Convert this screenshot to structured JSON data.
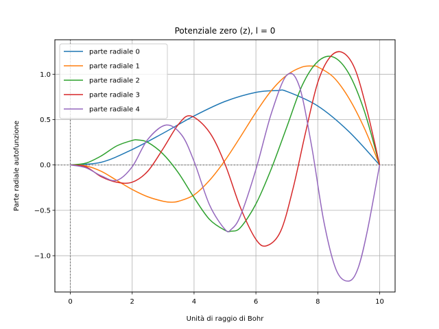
{
  "chart_data": {
    "type": "line",
    "title": "Potenziale zero (z), l = 0",
    "xlabel": "Unità di raggio di Bohr",
    "ylabel": "Parte radiale autofunzione",
    "xlim": [
      -0.5,
      10.5
    ],
    "ylim": [
      -1.4,
      1.38
    ],
    "xticks": [
      0,
      2,
      4,
      6,
      8,
      10
    ],
    "xtick_labels": [
      "0",
      "2",
      "4",
      "6",
      "8",
      "10"
    ],
    "yticks": [
      -1.0,
      -0.5,
      0.0,
      0.5,
      1.0
    ],
    "ytick_labels": [
      "−1.0",
      "−0.5",
      "0.0",
      "0.5",
      "1.0"
    ],
    "grid": true,
    "legend_position": "top-left",
    "reference_lines": {
      "y": 0,
      "x": 0,
      "style": "dotted"
    },
    "series": [
      {
        "name": "parte radiale 0",
        "color": "#1f77b4",
        "x": [
          0,
          1,
          2,
          3,
          4,
          5,
          6,
          6.7,
          7,
          8,
          9,
          10
        ],
        "y": [
          0,
          0.03,
          0.17,
          0.35,
          0.54,
          0.7,
          0.8,
          0.82,
          0.81,
          0.65,
          0.37,
          0.0
        ]
      },
      {
        "name": "parte radiale 1",
        "color": "#ff7f0e",
        "x": [
          0,
          0.5,
          1,
          1.5,
          2,
          2.5,
          3,
          3.25,
          3.5,
          4,
          4.5,
          5,
          5.5,
          6,
          6.5,
          7,
          7.5,
          7.85,
          8,
          8.5,
          9,
          9.5,
          10
        ],
        "y": [
          0,
          -0.01,
          -0.07,
          -0.17,
          -0.27,
          -0.35,
          -0.4,
          -0.41,
          -0.4,
          -0.33,
          -0.17,
          0.05,
          0.31,
          0.58,
          0.82,
          0.99,
          1.08,
          1.09,
          1.08,
          0.97,
          0.74,
          0.41,
          0.0
        ]
      },
      {
        "name": "parte radiale 2",
        "color": "#2ca02c",
        "x": [
          0,
          0.5,
          1,
          1.5,
          2,
          2.2,
          2.5,
          3,
          3.5,
          4,
          4.5,
          5,
          5.2,
          5.5,
          6,
          6.5,
          7,
          7.5,
          8,
          8.5,
          9,
          9.5,
          10
        ],
        "y": [
          0,
          0.02,
          0.1,
          0.21,
          0.27,
          0.275,
          0.25,
          0.12,
          -0.09,
          -0.36,
          -0.6,
          -0.72,
          -0.73,
          -0.69,
          -0.43,
          -0.04,
          0.42,
          0.88,
          1.14,
          1.19,
          1.01,
          0.6,
          0.0
        ]
      },
      {
        "name": "parte radiale 3",
        "color": "#d62728",
        "x": [
          0,
          0.5,
          1,
          1.5,
          2,
          2.5,
          3,
          3.5,
          3.9,
          4.5,
          5,
          5.5,
          6,
          6.35,
          6.8,
          7.2,
          7.6,
          8,
          8.4,
          8.8,
          9.2,
          9.6,
          10
        ],
        "y": [
          0,
          -0.02,
          -0.13,
          -0.19,
          -0.19,
          -0.07,
          0.18,
          0.45,
          0.54,
          0.36,
          0.01,
          -0.47,
          -0.82,
          -0.89,
          -0.73,
          -0.26,
          0.35,
          0.91,
          1.19,
          1.24,
          1.06,
          0.59,
          0.0
        ]
      },
      {
        "name": "parte radiale 4",
        "color": "#9467bd",
        "x": [
          0,
          0.5,
          1,
          1.5,
          2,
          2.5,
          3.1,
          3.6,
          4,
          4.5,
          5,
          5.2,
          5.5,
          6,
          6.5,
          7,
          7.4,
          7.8,
          8.2,
          8.6,
          9,
          9.3,
          9.6,
          10
        ],
        "y": [
          0,
          -0.03,
          -0.12,
          -0.17,
          -0.02,
          0.28,
          0.44,
          0.33,
          0.04,
          -0.44,
          -0.71,
          -0.71,
          -0.56,
          -0.05,
          0.57,
          0.99,
          0.87,
          0.21,
          -0.63,
          -1.16,
          -1.28,
          -1.14,
          -0.73,
          0.0
        ]
      }
    ]
  }
}
